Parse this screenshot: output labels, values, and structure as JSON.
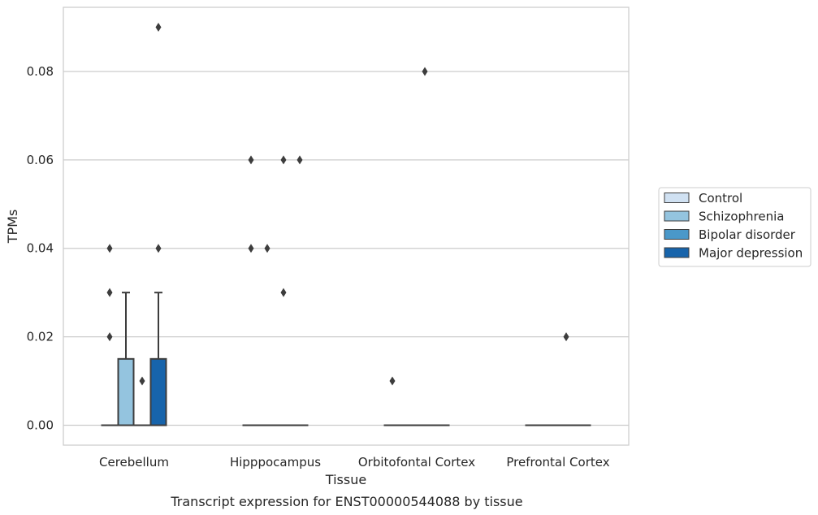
{
  "chart_data": {
    "type": "box",
    "caption": "Transcript expression for ENST00000544088 by tissue",
    "xlabel": "Tissue",
    "ylabel": "TPMs",
    "ylim": [
      -0.0045,
      0.0945
    ],
    "yticks": [
      0.0,
      0.02,
      0.04,
      0.06,
      0.08
    ],
    "ytick_labels": [
      "0.00",
      "0.02",
      "0.04",
      "0.06",
      "0.08"
    ],
    "grid": "horizontal",
    "legend_position": "right",
    "categories": [
      "Cerebellum",
      "Hipppocampus",
      "Orbitofontal Cortex",
      "Prefrontal Cortex"
    ],
    "series": [
      {
        "name": "Control",
        "color": "#d0e1f2",
        "boxes": [
          {
            "q1": 0,
            "median": 0,
            "q3": 0,
            "whisker_low": 0,
            "whisker_high": 0,
            "outliers": [
              0.02,
              0.03,
              0.04
            ]
          },
          {
            "q1": 0,
            "median": 0,
            "q3": 0,
            "whisker_low": 0,
            "whisker_high": 0,
            "outliers": [
              0.04,
              0.06
            ]
          },
          {
            "q1": 0,
            "median": 0,
            "q3": 0,
            "whisker_low": 0,
            "whisker_high": 0,
            "outliers": [
              0.01
            ]
          },
          {
            "q1": 0,
            "median": 0,
            "q3": 0,
            "whisker_low": 0,
            "whisker_high": 0,
            "outliers": []
          }
        ]
      },
      {
        "name": "Schizophrenia",
        "color": "#94c4df",
        "boxes": [
          {
            "q1": 0,
            "median": 0,
            "q3": 0.015,
            "whisker_low": 0,
            "whisker_high": 0.03,
            "outliers": []
          },
          {
            "q1": 0,
            "median": 0,
            "q3": 0,
            "whisker_low": 0,
            "whisker_high": 0,
            "outliers": [
              0.04
            ]
          },
          {
            "q1": 0,
            "median": 0,
            "q3": 0,
            "whisker_low": 0,
            "whisker_high": 0,
            "outliers": []
          },
          {
            "q1": 0,
            "median": 0,
            "q3": 0,
            "whisker_low": 0,
            "whisker_high": 0,
            "outliers": []
          }
        ]
      },
      {
        "name": "Bipolar disorder",
        "color": "#4a98c9",
        "boxes": [
          {
            "q1": 0,
            "median": 0,
            "q3": 0,
            "whisker_low": 0,
            "whisker_high": 0,
            "outliers": [
              0.01
            ]
          },
          {
            "q1": 0,
            "median": 0,
            "q3": 0,
            "whisker_low": 0,
            "whisker_high": 0,
            "outliers": [
              0.03,
              0.06
            ]
          },
          {
            "q1": 0,
            "median": 0,
            "q3": 0,
            "whisker_low": 0,
            "whisker_high": 0,
            "outliers": [
              0.08
            ]
          },
          {
            "q1": 0,
            "median": 0,
            "q3": 0,
            "whisker_low": 0,
            "whisker_high": 0,
            "outliers": [
              0.02
            ]
          }
        ]
      },
      {
        "name": "Major depression",
        "color": "#1764ab",
        "boxes": [
          {
            "q1": 0,
            "median": 0,
            "q3": 0.015,
            "whisker_low": 0,
            "whisker_high": 0.03,
            "outliers": [
              0.04,
              0.09
            ]
          },
          {
            "q1": 0,
            "median": 0,
            "q3": 0,
            "whisker_low": 0,
            "whisker_high": 0,
            "outliers": [
              0.06
            ]
          },
          {
            "q1": 0,
            "median": 0,
            "q3": 0,
            "whisker_low": 0,
            "whisker_high": 0,
            "outliers": []
          },
          {
            "q1": 0,
            "median": 0,
            "q3": 0,
            "whisker_low": 0,
            "whisker_high": 0,
            "outliers": []
          }
        ]
      }
    ]
  }
}
